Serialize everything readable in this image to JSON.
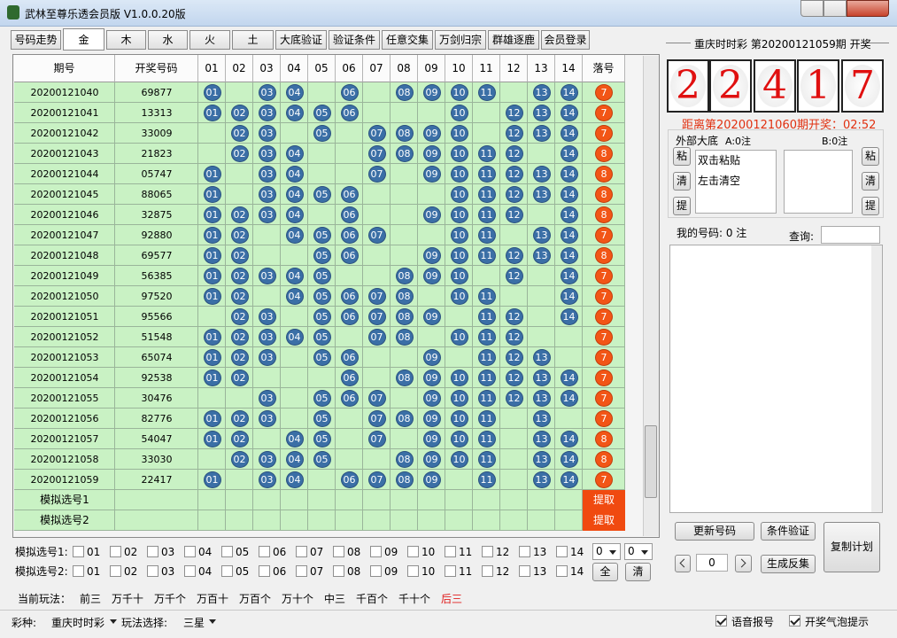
{
  "window": {
    "title": "武林至尊乐透会员版  V1.0.0.20版"
  },
  "tabs": {
    "items": [
      "号码走势",
      "金",
      "木",
      "水",
      "火",
      "土",
      "大底验证",
      "验证条件",
      "任意交集",
      "万剑归宗",
      "群雄逐鹿",
      "会员登录"
    ],
    "selected": 1
  },
  "table": {
    "headers": [
      "期号",
      "开奖号码",
      "01",
      "02",
      "03",
      "04",
      "05",
      "06",
      "07",
      "08",
      "09",
      "10",
      "11",
      "12",
      "13",
      "14",
      "落号"
    ],
    "rows": [
      {
        "period": "20200121040",
        "draw": "69877",
        "hits": [
          "01",
          "03",
          "04",
          "06",
          "08",
          "09",
          "10",
          "11",
          "13",
          "14"
        ],
        "miss": 7
      },
      {
        "period": "20200121041",
        "draw": "13313",
        "hits": [
          "01",
          "02",
          "03",
          "04",
          "05",
          "06",
          "10",
          "12",
          "13",
          "14"
        ],
        "miss": 7
      },
      {
        "period": "20200121042",
        "draw": "33009",
        "hits": [
          "02",
          "03",
          "05",
          "07",
          "08",
          "09",
          "10",
          "12",
          "13",
          "14"
        ],
        "miss": 7
      },
      {
        "period": "20200121043",
        "draw": "21823",
        "hits": [
          "02",
          "03",
          "04",
          "07",
          "08",
          "09",
          "10",
          "11",
          "12",
          "14"
        ],
        "miss": 8
      },
      {
        "period": "20200121044",
        "draw": "05747",
        "hits": [
          "01",
          "03",
          "04",
          "07",
          "09",
          "10",
          "11",
          "12",
          "13",
          "14"
        ],
        "miss": 8
      },
      {
        "period": "20200121045",
        "draw": "88065",
        "hits": [
          "01",
          "03",
          "04",
          "05",
          "06",
          "10",
          "11",
          "12",
          "13",
          "14"
        ],
        "miss": 8
      },
      {
        "period": "20200121046",
        "draw": "32875",
        "hits": [
          "01",
          "02",
          "03",
          "04",
          "06",
          "09",
          "10",
          "11",
          "12",
          "14"
        ],
        "miss": 8
      },
      {
        "period": "20200121047",
        "draw": "92880",
        "hits": [
          "01",
          "02",
          "04",
          "05",
          "06",
          "07",
          "10",
          "11",
          "13",
          "14"
        ],
        "miss": 7
      },
      {
        "period": "20200121048",
        "draw": "69577",
        "hits": [
          "01",
          "02",
          "05",
          "06",
          "09",
          "10",
          "11",
          "12",
          "13",
          "14"
        ],
        "miss": 8
      },
      {
        "period": "20200121049",
        "draw": "56385",
        "hits": [
          "01",
          "02",
          "03",
          "04",
          "05",
          "08",
          "09",
          "10",
          "12",
          "14"
        ],
        "miss": 7
      },
      {
        "period": "20200121050",
        "draw": "97520",
        "hits": [
          "01",
          "02",
          "04",
          "05",
          "06",
          "07",
          "08",
          "10",
          "11",
          "14"
        ],
        "miss": 7
      },
      {
        "period": "20200121051",
        "draw": "95566",
        "hits": [
          "02",
          "03",
          "05",
          "06",
          "07",
          "08",
          "09",
          "11",
          "12",
          "14"
        ],
        "miss": 7
      },
      {
        "period": "20200121052",
        "draw": "51548",
        "hits": [
          "01",
          "02",
          "03",
          "04",
          "05",
          "07",
          "08",
          "10",
          "11",
          "12"
        ],
        "miss": 7
      },
      {
        "period": "20200121053",
        "draw": "65074",
        "hits": [
          "01",
          "02",
          "03",
          "05",
          "06",
          "09",
          "11",
          "12",
          "13"
        ],
        "miss": 7
      },
      {
        "period": "20200121054",
        "draw": "92538",
        "hits": [
          "01",
          "02",
          "06",
          "08",
          "09",
          "10",
          "11",
          "12",
          "13",
          "14"
        ],
        "miss": 7
      },
      {
        "period": "20200121055",
        "draw": "30476",
        "hits": [
          "03",
          "05",
          "06",
          "07",
          "09",
          "10",
          "11",
          "12",
          "13",
          "14"
        ],
        "miss": 7
      },
      {
        "period": "20200121056",
        "draw": "82776",
        "hits": [
          "01",
          "02",
          "03",
          "05",
          "07",
          "08",
          "09",
          "10",
          "11",
          "13"
        ],
        "miss": 7
      },
      {
        "period": "20200121057",
        "draw": "54047",
        "hits": [
          "01",
          "02",
          "04",
          "05",
          "07",
          "09",
          "10",
          "11",
          "13",
          "14"
        ],
        "miss": 8
      },
      {
        "period": "20200121058",
        "draw": "33030",
        "hits": [
          "02",
          "03",
          "04",
          "05",
          "08",
          "09",
          "10",
          "11",
          "13",
          "14"
        ],
        "miss": 8
      },
      {
        "period": "20200121059",
        "draw": "22417",
        "hits": [
          "01",
          "03",
          "04",
          "06",
          "07",
          "08",
          "09",
          "11",
          "13",
          "14"
        ],
        "miss": 7
      }
    ],
    "sim_rows": [
      {
        "label": "模拟选号1",
        "action": "提取"
      },
      {
        "label": "模拟选号2",
        "action": "提取"
      }
    ]
  },
  "sim_select": {
    "labels": [
      "模拟选号1:",
      "模拟选号2:"
    ],
    "numbers": [
      "01",
      "02",
      "03",
      "04",
      "05",
      "06",
      "07",
      "08",
      "09",
      "10",
      "11",
      "12",
      "13",
      "14"
    ],
    "selects": [
      "0",
      "0"
    ],
    "buttons": [
      "全",
      "清"
    ]
  },
  "play_modes": {
    "label": "当前玩法：",
    "items": [
      "前三",
      "万千十",
      "万千个",
      "万百十",
      "万百个",
      "万十个",
      "中三",
      "千百个",
      "千十个",
      "后三"
    ],
    "active": 9
  },
  "status": {
    "lottery_label": "彩种:",
    "lottery": "重庆时时彩",
    "play_label": "玩法选择:",
    "play": "三星",
    "checks": [
      {
        "label": "语音报号",
        "checked": true
      },
      {
        "label": "开奖气泡提示",
        "checked": true
      }
    ]
  },
  "right": {
    "draw_title": "重庆时时彩  第20200121059期  开奖",
    "digits": [
      "2",
      "2",
      "4",
      "1",
      "7"
    ],
    "countdown": "距离第20200121060期开奖：02:52",
    "pool": {
      "title": "外部大底",
      "a": "A:0注",
      "b": "B:0注",
      "buttons": [
        "粘",
        "清",
        "提"
      ],
      "lines": [
        "双击粘贴",
        "左击清空"
      ]
    },
    "my_numbers": "我的号码:  0 注",
    "query": "查询:",
    "update": "更新号码",
    "verify": "条件验证",
    "copy": "复制计划",
    "inverse": "生成反集",
    "spinner": "0"
  }
}
